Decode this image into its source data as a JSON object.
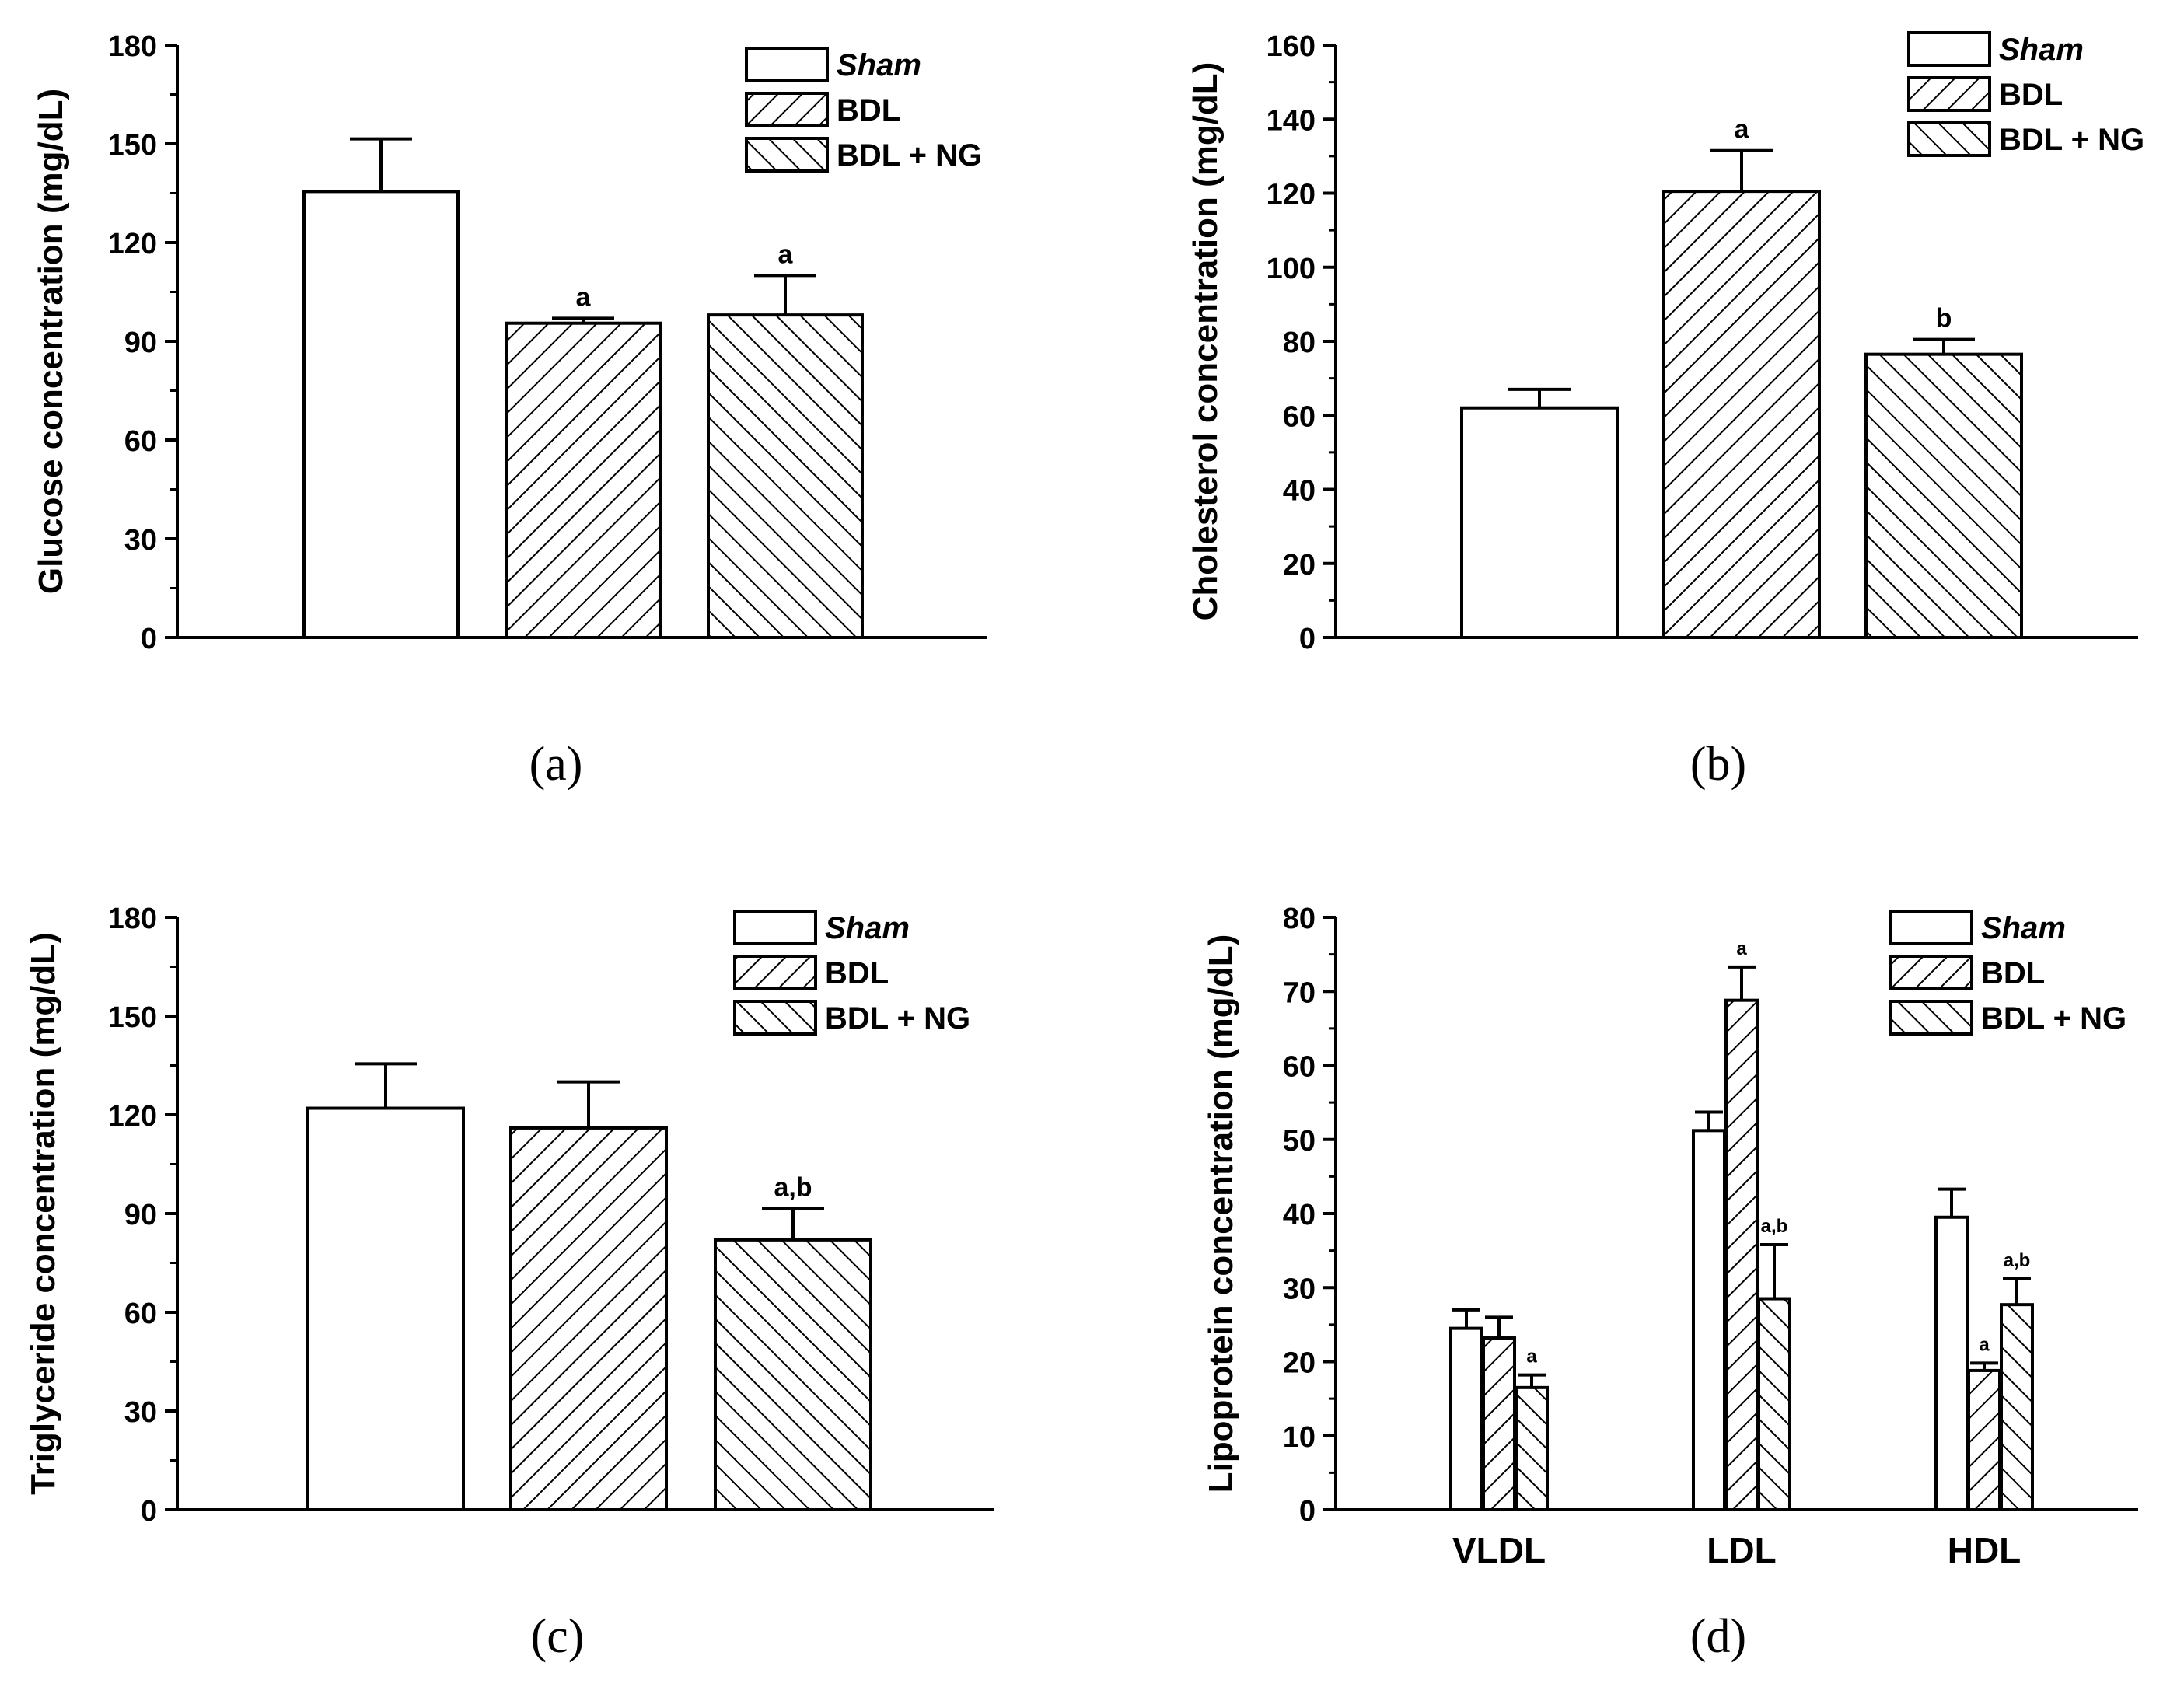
{
  "legend": {
    "sham": "Sham",
    "bdl": "BDL",
    "bdl_ng": "BDL + NG"
  },
  "chart_data": [
    {
      "id": "a",
      "type": "bar",
      "caption": "(a)",
      "ylabel": "Glucose concentration (mg/dL)",
      "ylim": [
        0,
        180
      ],
      "yticks": [
        "0",
        "30",
        "60",
        "90",
        "120",
        "150",
        "180"
      ],
      "categories": [
        "Sham",
        "BDL",
        "BDL + NG"
      ],
      "values": [
        135.5,
        95.5,
        98
      ],
      "errors": [
        16,
        1.5,
        12
      ],
      "annotations": [
        "",
        "a",
        "a"
      ],
      "legend_position": "top-right"
    },
    {
      "id": "b",
      "type": "bar",
      "caption": "(b)",
      "ylabel": "Cholesterol concentration (mg/dL)",
      "ylim": [
        0,
        160
      ],
      "yticks": [
        "0",
        "20",
        "40",
        "60",
        "80",
        "100",
        "120",
        "140",
        "160"
      ],
      "categories": [
        "Sham",
        "BDL",
        "BDL + NG"
      ],
      "values": [
        62,
        120.5,
        76.5
      ],
      "errors": [
        5,
        11,
        4
      ],
      "annotations": [
        "",
        "a",
        "b"
      ],
      "legend_position": "top-right"
    },
    {
      "id": "c",
      "type": "bar",
      "caption": "(c)",
      "ylabel": "Triglyceride concentration (mg/dL)",
      "ylim": [
        0,
        180
      ],
      "yticks": [
        "0",
        "30",
        "60",
        "90",
        "120",
        "150",
        "180"
      ],
      "categories": [
        "Sham",
        "BDL",
        "BDL + NG"
      ],
      "values": [
        122,
        116,
        82
      ],
      "errors": [
        13.5,
        14,
        9.5
      ],
      "annotations": [
        "",
        "",
        "a,b"
      ],
      "legend_position": "top-right"
    },
    {
      "id": "d",
      "type": "bar",
      "caption": "(d)",
      "ylabel": "Lipoprotein concentration (mg/dL)",
      "ylim": [
        0,
        80
      ],
      "yticks": [
        "0",
        "10",
        "20",
        "30",
        "40",
        "50",
        "60",
        "70",
        "80"
      ],
      "categories": [
        "VLDL",
        "LDL",
        "HDL"
      ],
      "series": [
        {
          "name": "Sham",
          "values": [
            24.5,
            51.2,
            39.5
          ],
          "errors": [
            2.5,
            2.5,
            3.8
          ],
          "annotations": [
            "",
            "",
            ""
          ]
        },
        {
          "name": "BDL",
          "values": [
            23.2,
            68.8,
            18.8
          ],
          "errors": [
            2.8,
            4.5,
            1
          ],
          "annotations": [
            "",
            "a",
            "a"
          ]
        },
        {
          "name": "BDL + NG",
          "values": [
            16.5,
            28.5,
            27.7
          ],
          "errors": [
            1.7,
            7.3,
            3.5
          ],
          "annotations": [
            "a",
            "a,b",
            "a,b"
          ]
        }
      ],
      "legend_position": "top-right"
    }
  ]
}
